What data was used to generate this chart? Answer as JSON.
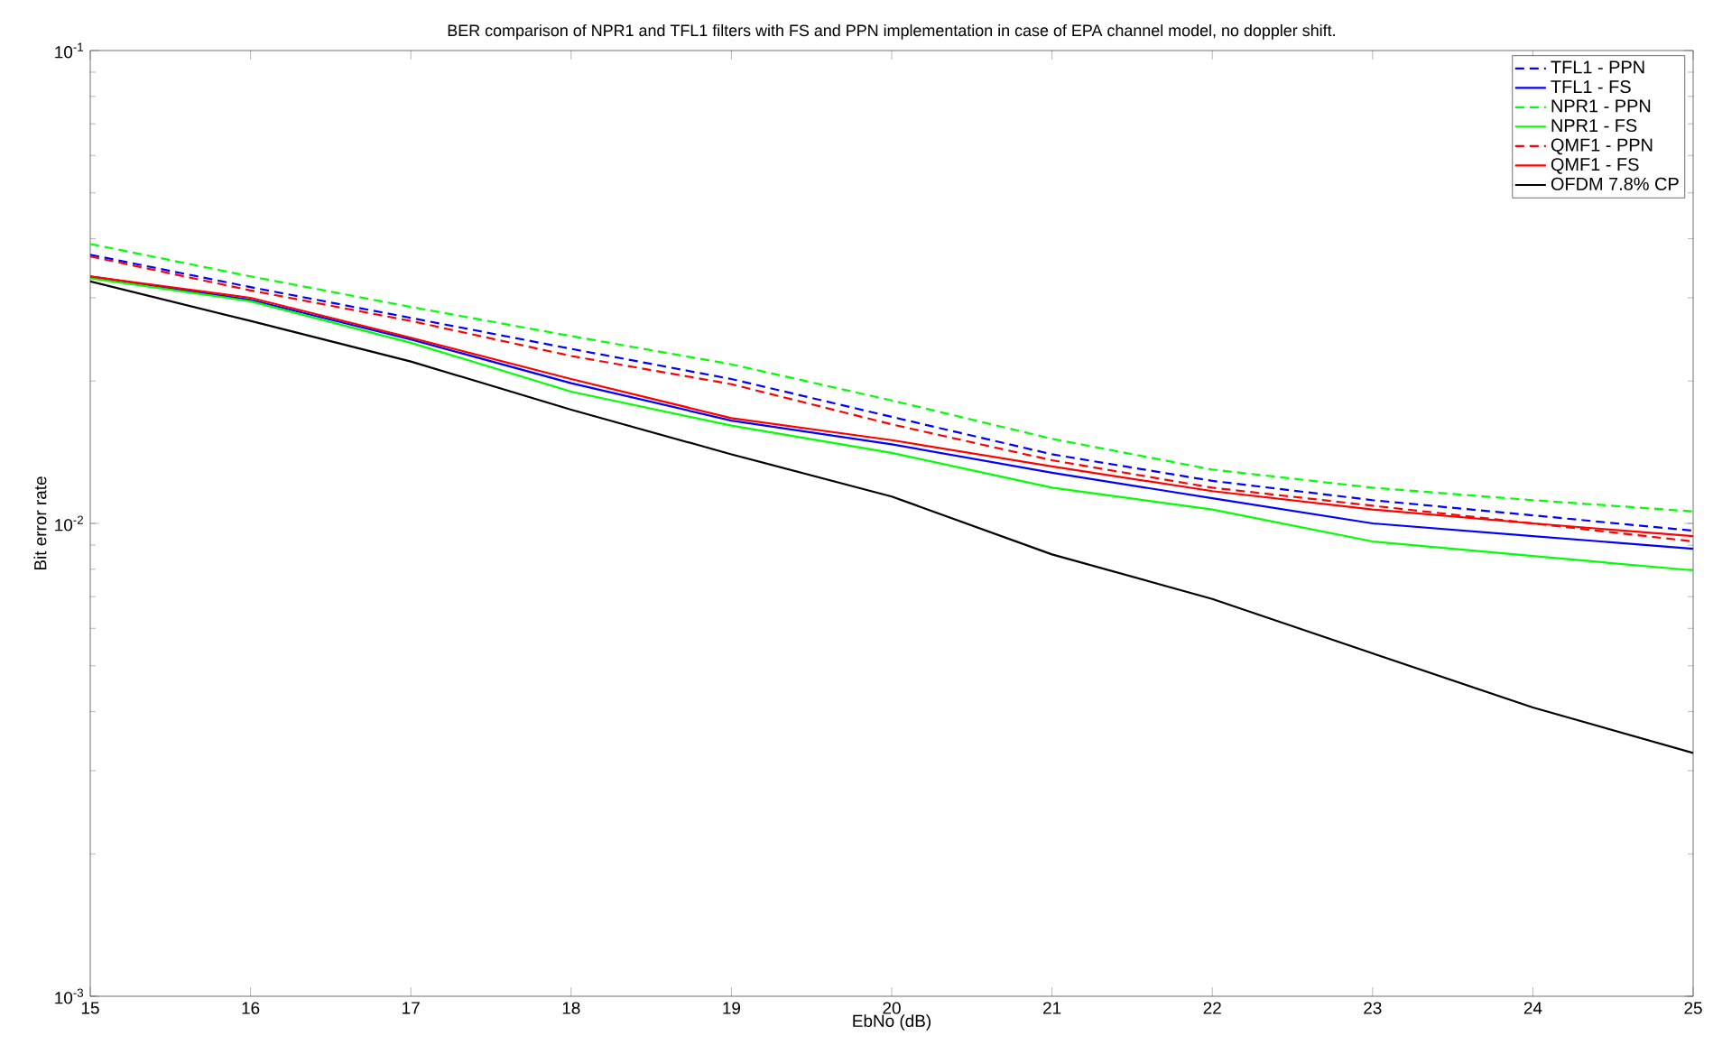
{
  "chart_data": {
    "type": "line",
    "title": "BER comparison of NPR1 and TFL1 filters with FS and PPN implementation in case of EPA channel model, no doppler shift.",
    "xlabel": "EbNo (dB)",
    "ylabel": "Bit error rate",
    "x": [
      15,
      16,
      17,
      18,
      19,
      20,
      21,
      22,
      23,
      24,
      25
    ],
    "series": [
      {
        "name": "TFL1 - PPN",
        "color": "#0000ff",
        "line_style": "dashed",
        "values": [
          0.037,
          0.0316,
          0.0272,
          0.0234,
          0.0202,
          0.0168,
          0.014,
          0.0123,
          0.0112,
          0.0104,
          0.00965
        ]
      },
      {
        "name": "TFL1 - FS",
        "color": "#0000ff",
        "line_style": "solid",
        "values": [
          0.0333,
          0.0297,
          0.0245,
          0.0198,
          0.0165,
          0.0147,
          0.0128,
          0.0113,
          0.01,
          0.0094,
          0.00884
        ]
      },
      {
        "name": "NPR1 - PPN",
        "color": "#00ff00",
        "line_style": "dashed",
        "values": [
          0.039,
          0.0333,
          0.0287,
          0.0249,
          0.0217,
          0.0182,
          0.0151,
          0.013,
          0.0119,
          0.0112,
          0.0106
        ]
      },
      {
        "name": "NPR1 - FS",
        "color": "#00ff00",
        "line_style": "solid",
        "values": [
          0.033,
          0.0295,
          0.0241,
          0.019,
          0.0161,
          0.0141,
          0.0119,
          0.0107,
          0.00916,
          0.00853,
          0.00796
        ]
      },
      {
        "name": "QMF1 - PPN",
        "color": "#ff0000",
        "line_style": "dashed",
        "values": [
          0.0367,
          0.0311,
          0.0268,
          0.0226,
          0.0197,
          0.0162,
          0.0136,
          0.0119,
          0.0109,
          0.01,
          0.00916
        ]
      },
      {
        "name": "QMF1 - FS",
        "color": "#ff0000",
        "line_style": "solid",
        "values": [
          0.0333,
          0.03,
          0.0247,
          0.0202,
          0.0167,
          0.015,
          0.0132,
          0.0117,
          0.0107,
          0.01,
          0.0094
        ]
      },
      {
        "name": "OFDM 7.8% CP",
        "color": "#000000",
        "line_style": "solid",
        "values": [
          0.0325,
          0.0268,
          0.022,
          0.0174,
          0.014,
          0.0114,
          0.0086,
          0.00692,
          0.00531,
          0.00408,
          0.00327
        ]
      }
    ],
    "log": "y",
    "xlim": [
      15,
      25
    ],
    "ylim": [
      0.001,
      0.1
    ],
    "xticks": [
      15,
      16,
      17,
      18,
      19,
      20,
      21,
      22,
      23,
      24,
      25
    ],
    "yticks": [
      {
        "value": 0.001,
        "label": "10$^{-3}$"
      },
      {
        "value": 0.01,
        "label": "10$^{-2}$"
      },
      {
        "value": 0.1,
        "label": "10$^{-1}$"
      }
    ],
    "grid": false,
    "legend": "top right",
    "marker": "none"
  }
}
